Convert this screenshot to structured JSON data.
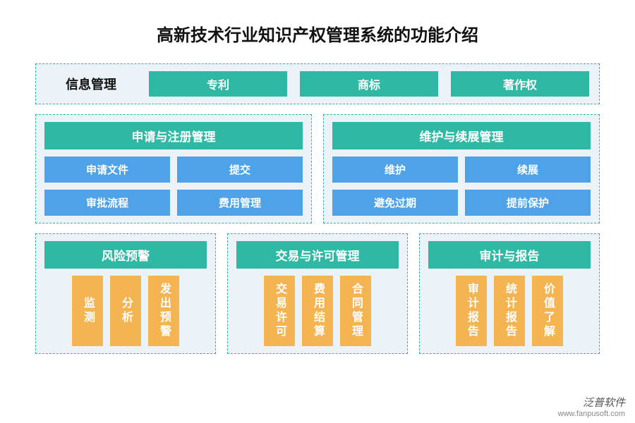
{
  "title": "高新技术行业知识产权管理系统的功能介绍",
  "colors": {
    "teal": "#2fb8a4",
    "blue": "#4ea3e8",
    "orange": "#f5b452",
    "panel_bg": "#ecf3f8",
    "page_bg": "#ffffff",
    "text_dark": "#111111",
    "text_light": "#ffffff"
  },
  "row1": {
    "label": "信息管理",
    "pills": [
      "专利",
      "商标",
      "著作权"
    ]
  },
  "row2": {
    "left": {
      "header": "申请与注册管理",
      "items": [
        "申请文件",
        "提交",
        "审批流程",
        "费用管理"
      ]
    },
    "right": {
      "header": "维护与续展管理",
      "items": [
        "维护",
        "续展",
        "避免过期",
        "提前保护"
      ]
    }
  },
  "row3": [
    {
      "header": "风险预警",
      "items": [
        "监测",
        "分析",
        "发出预警"
      ]
    },
    {
      "header": "交易与许可管理",
      "items": [
        "交易许可",
        "费用结算",
        "合同管理"
      ]
    },
    {
      "header": "审计与报告",
      "items": [
        "审计报告",
        "统计报告",
        "价值了解"
      ]
    }
  ],
  "watermark": {
    "cn": "泛普软件",
    "url": "www.fanpusoft.com"
  }
}
